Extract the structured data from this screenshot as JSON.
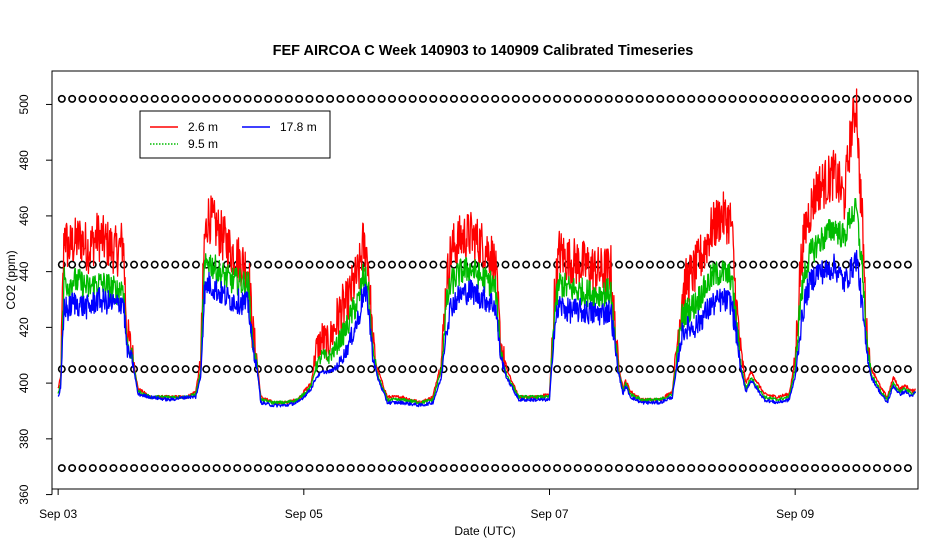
{
  "chart_data": {
    "type": "line",
    "title": "FEF AIRCOA C  Week 140903 to 140909  Calibrated Timeseries",
    "xlabel": "Date (UTC)",
    "ylabel": "CO2 (ppm)",
    "xlim": [
      -0.05,
      7.0
    ],
    "ylim": [
      362,
      512
    ],
    "x_units": "days since Sep 03 00:00 UTC",
    "x_ticks": [
      {
        "value": 0,
        "label": "Sep 03"
      },
      {
        "value": 2,
        "label": "Sep 05"
      },
      {
        "value": 4,
        "label": "Sep 07"
      },
      {
        "value": 6,
        "label": "Sep 09"
      }
    ],
    "y_ticks": [
      360,
      380,
      400,
      420,
      440,
      460,
      480,
      500
    ],
    "legend": {
      "position": "top-left",
      "entries": [
        {
          "label": "2.6 m",
          "color": "#ff0000",
          "style": "solid"
        },
        {
          "label": "17.8 m",
          "color": "#0000ff",
          "style": "solid"
        },
        {
          "label": "9.5 m",
          "color": "#00bb00",
          "style": "dotted"
        }
      ]
    },
    "series": [
      {
        "name": "2.6 m",
        "color": "#ff0000",
        "x": [
          0.0,
          0.02,
          0.05,
          0.08,
          0.12,
          0.18,
          0.25,
          0.32,
          0.4,
          0.48,
          0.53,
          0.56,
          0.6,
          0.65,
          0.75,
          0.9,
          1.05,
          1.12,
          1.16,
          1.19,
          1.22,
          1.3,
          1.4,
          1.5,
          1.55,
          1.58,
          1.62,
          1.65,
          1.75,
          1.85,
          1.95,
          2.02,
          2.06,
          2.1,
          2.15,
          2.2,
          2.25,
          2.3,
          2.35,
          2.4,
          2.45,
          2.48,
          2.52,
          2.56,
          2.6,
          2.68,
          2.8,
          2.95,
          3.05,
          3.12,
          3.16,
          3.2,
          3.28,
          3.36,
          3.44,
          3.52,
          3.56,
          3.6,
          3.65,
          3.75,
          3.9,
          4.0,
          4.04,
          4.08,
          4.15,
          4.25,
          4.35,
          4.42,
          4.5,
          4.52,
          4.56,
          4.6,
          4.62,
          4.66,
          4.75,
          4.9,
          5.0,
          5.08,
          5.12,
          5.18,
          5.25,
          5.32,
          5.4,
          5.48,
          5.52,
          5.56,
          5.6,
          5.64,
          5.75,
          5.85,
          5.95,
          6.0,
          6.04,
          6.08,
          6.12,
          6.18,
          6.25,
          6.32,
          6.4,
          6.45,
          6.5,
          6.52,
          6.55,
          6.58,
          6.62,
          6.66,
          6.7,
          6.75,
          6.8,
          6.85,
          6.9,
          6.95,
          6.98
        ],
        "y": [
          398,
          402,
          455,
          448,
          450,
          452,
          448,
          453,
          450,
          447,
          451,
          418,
          412,
          398,
          395,
          395,
          395,
          397,
          408,
          450,
          460,
          455,
          448,
          443,
          441,
          420,
          408,
          395,
          393,
          393,
          394,
          398,
          400,
          412,
          416,
          414,
          420,
          426,
          428,
          435,
          440,
          450,
          446,
          415,
          405,
          395,
          395,
          393,
          395,
          408,
          435,
          448,
          452,
          453,
          450,
          447,
          441,
          415,
          405,
          395,
          395,
          396,
          430,
          447,
          444,
          443,
          441,
          440,
          441,
          426,
          407,
          398,
          401,
          397,
          394,
          394,
          397,
          432,
          437,
          440,
          447,
          455,
          460,
          458,
          428,
          410,
          400,
          404,
          396,
          395,
          396,
          408,
          440,
          455,
          462,
          470,
          472,
          475,
          466,
          488,
          501,
          478,
          455,
          418,
          405,
          402,
          398,
          395,
          402,
          398,
          399,
          397,
          398
        ]
      },
      {
        "name": "9.5 m",
        "color": "#00bb00",
        "x": [
          0.0,
          0.02,
          0.05,
          0.08,
          0.12,
          0.18,
          0.25,
          0.32,
          0.4,
          0.48,
          0.53,
          0.56,
          0.6,
          0.65,
          0.75,
          0.9,
          1.05,
          1.12,
          1.16,
          1.19,
          1.22,
          1.3,
          1.4,
          1.5,
          1.55,
          1.58,
          1.62,
          1.65,
          1.75,
          1.85,
          1.95,
          2.02,
          2.06,
          2.1,
          2.15,
          2.2,
          2.25,
          2.3,
          2.35,
          2.4,
          2.45,
          2.48,
          2.52,
          2.56,
          2.6,
          2.68,
          2.8,
          2.95,
          3.05,
          3.12,
          3.16,
          3.2,
          3.28,
          3.36,
          3.44,
          3.52,
          3.56,
          3.6,
          3.65,
          3.75,
          3.9,
          4.0,
          4.04,
          4.08,
          4.15,
          4.25,
          4.35,
          4.42,
          4.5,
          4.52,
          4.56,
          4.6,
          4.62,
          4.66,
          4.75,
          4.9,
          5.0,
          5.08,
          5.12,
          5.18,
          5.25,
          5.32,
          5.4,
          5.48,
          5.52,
          5.56,
          5.6,
          5.64,
          5.75,
          5.85,
          5.95,
          6.0,
          6.04,
          6.08,
          6.12,
          6.18,
          6.25,
          6.32,
          6.4,
          6.45,
          6.5,
          6.52,
          6.55,
          6.58,
          6.62,
          6.66,
          6.7,
          6.75,
          6.8,
          6.85,
          6.9,
          6.95,
          6.98
        ],
        "y": [
          396,
          400,
          438,
          435,
          437,
          436,
          434,
          436,
          435,
          433,
          435,
          414,
          410,
          397,
          395,
          395,
          395,
          396,
          404,
          440,
          444,
          440,
          437,
          436,
          435,
          416,
          406,
          394,
          393,
          393,
          394,
          397,
          399,
          406,
          410,
          409,
          412,
          416,
          420,
          426,
          430,
          438,
          436,
          412,
          403,
          394,
          394,
          393,
          394,
          405,
          428,
          436,
          440,
          441,
          438,
          436,
          434,
          412,
          403,
          395,
          395,
          395,
          425,
          436,
          434,
          433,
          432,
          432,
          433,
          421,
          405,
          397,
          400,
          396,
          394,
          394,
          396,
          424,
          426,
          428,
          433,
          438,
          440,
          438,
          422,
          406,
          398,
          402,
          395,
          394,
          395,
          405,
          428,
          440,
          446,
          450,
          453,
          456,
          452,
          460,
          462,
          452,
          440,
          415,
          403,
          400,
          397,
          394,
          400,
          397,
          398,
          396,
          397
        ]
      },
      {
        "name": "17.8 m",
        "color": "#0000ff",
        "x": [
          0.0,
          0.02,
          0.05,
          0.08,
          0.12,
          0.18,
          0.25,
          0.32,
          0.4,
          0.48,
          0.53,
          0.56,
          0.6,
          0.65,
          0.75,
          0.9,
          1.05,
          1.12,
          1.16,
          1.19,
          1.22,
          1.3,
          1.4,
          1.5,
          1.55,
          1.58,
          1.62,
          1.65,
          1.75,
          1.85,
          1.95,
          2.02,
          2.06,
          2.1,
          2.15,
          2.2,
          2.25,
          2.3,
          2.35,
          2.4,
          2.45,
          2.48,
          2.52,
          2.56,
          2.6,
          2.68,
          2.8,
          2.95,
          3.05,
          3.12,
          3.16,
          3.2,
          3.28,
          3.36,
          3.44,
          3.52,
          3.56,
          3.6,
          3.65,
          3.75,
          3.9,
          4.0,
          4.04,
          4.08,
          4.15,
          4.25,
          4.35,
          4.42,
          4.5,
          4.52,
          4.56,
          4.6,
          4.62,
          4.66,
          4.75,
          4.9,
          5.0,
          5.08,
          5.12,
          5.18,
          5.25,
          5.32,
          5.4,
          5.48,
          5.52,
          5.56,
          5.6,
          5.64,
          5.75,
          5.85,
          5.95,
          6.0,
          6.04,
          6.08,
          6.12,
          6.18,
          6.25,
          6.32,
          6.4,
          6.45,
          6.5,
          6.52,
          6.55,
          6.58,
          6.62,
          6.66,
          6.7,
          6.75,
          6.8,
          6.85,
          6.9,
          6.95,
          6.98
        ],
        "y": [
          395,
          398,
          428,
          426,
          429,
          428,
          427,
          430,
          429,
          428,
          430,
          412,
          409,
          396,
          395,
          394,
          395,
          395,
          402,
          432,
          436,
          433,
          430,
          429,
          428,
          414,
          405,
          393,
          392,
          392,
          393,
          396,
          398,
          402,
          404,
          404,
          405,
          408,
          412,
          418,
          424,
          432,
          430,
          410,
          402,
          393,
          393,
          392,
          393,
          402,
          420,
          428,
          432,
          433,
          431,
          429,
          428,
          410,
          402,
          394,
          394,
          394,
          420,
          428,
          426,
          426,
          425,
          425,
          426,
          418,
          404,
          396,
          399,
          395,
          393,
          393,
          395,
          418,
          420,
          420,
          424,
          428,
          430,
          429,
          418,
          404,
          397,
          401,
          394,
          393,
          394,
          402,
          418,
          430,
          436,
          440,
          440,
          442,
          436,
          440,
          445,
          438,
          425,
          412,
          402,
          399,
          396,
          393,
          399,
          396,
          397,
          395,
          397
        ]
      },
      {
        "name": "",
        "type": "scatter",
        "marker": "open-circle",
        "color": "#000000",
        "note_rows": [
          502,
          442.5,
          405,
          369.5
        ],
        "x_start": 0.03,
        "x_step": 0.084
      }
    ]
  }
}
